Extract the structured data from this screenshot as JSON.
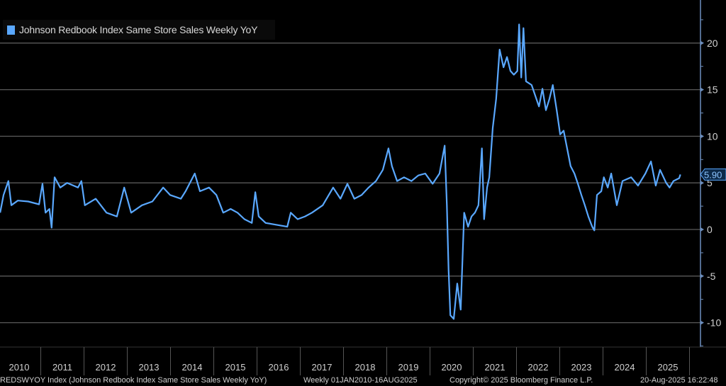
{
  "chart_data": {
    "type": "line",
    "title": "",
    "legend": {
      "label": "Johnson Redbook Index Same Store Sales Weekly YoY",
      "placement": "top-left"
    },
    "series": [
      {
        "name": "Johnson Redbook Index Same Store Sales Weekly YoY",
        "color": "#5aa8ff",
        "points": [
          [
            2010.06,
            1.8
          ],
          [
            2010.14,
            3.7
          ],
          [
            2010.25,
            5.2
          ],
          [
            2010.32,
            2.6
          ],
          [
            2010.47,
            3.1
          ],
          [
            2010.71,
            3.0
          ],
          [
            2010.96,
            2.7
          ],
          [
            2011.04,
            4.9
          ],
          [
            2011.11,
            1.8
          ],
          [
            2011.2,
            2.2
          ],
          [
            2011.25,
            0.2
          ],
          [
            2011.32,
            5.6
          ],
          [
            2011.45,
            4.5
          ],
          [
            2011.61,
            5.0
          ],
          [
            2011.86,
            4.5
          ],
          [
            2011.94,
            5.2
          ],
          [
            2012.02,
            2.6
          ],
          [
            2012.27,
            3.3
          ],
          [
            2012.52,
            1.8
          ],
          [
            2012.76,
            1.4
          ],
          [
            2012.93,
            4.5
          ],
          [
            2013.09,
            1.8
          ],
          [
            2013.34,
            2.6
          ],
          [
            2013.58,
            3.0
          ],
          [
            2013.83,
            4.5
          ],
          [
            2013.99,
            3.7
          ],
          [
            2014.24,
            3.3
          ],
          [
            2014.35,
            4.1
          ],
          [
            2014.56,
            6.0
          ],
          [
            2014.68,
            4.1
          ],
          [
            2014.89,
            4.5
          ],
          [
            2015.06,
            3.7
          ],
          [
            2015.22,
            1.8
          ],
          [
            2015.39,
            2.2
          ],
          [
            2015.55,
            1.8
          ],
          [
            2015.71,
            1.1
          ],
          [
            2015.88,
            0.7
          ],
          [
            2015.96,
            4.0
          ],
          [
            2016.04,
            1.4
          ],
          [
            2016.2,
            0.7
          ],
          [
            2016.45,
            0.5
          ],
          [
            2016.7,
            0.3
          ],
          [
            2016.78,
            1.8
          ],
          [
            2016.94,
            1.1
          ],
          [
            2017.11,
            1.4
          ],
          [
            2017.27,
            1.8
          ],
          [
            2017.52,
            2.6
          ],
          [
            2017.76,
            4.5
          ],
          [
            2017.93,
            3.3
          ],
          [
            2018.09,
            4.9
          ],
          [
            2018.25,
            3.3
          ],
          [
            2018.42,
            3.7
          ],
          [
            2018.58,
            4.5
          ],
          [
            2018.75,
            5.2
          ],
          [
            2018.91,
            6.4
          ],
          [
            2019.04,
            8.7
          ],
          [
            2019.12,
            6.8
          ],
          [
            2019.24,
            5.2
          ],
          [
            2019.4,
            5.6
          ],
          [
            2019.57,
            5.2
          ],
          [
            2019.73,
            5.8
          ],
          [
            2019.89,
            6.0
          ],
          [
            2020.06,
            4.9
          ],
          [
            2020.22,
            6.0
          ],
          [
            2020.34,
            9.0
          ],
          [
            2020.39,
            2.6
          ],
          [
            2020.43,
            -4.3
          ],
          [
            2020.47,
            -9.2
          ],
          [
            2020.55,
            -9.6
          ],
          [
            2020.63,
            -5.8
          ],
          [
            2020.71,
            -8.6
          ],
          [
            2020.79,
            1.8
          ],
          [
            2020.88,
            0.3
          ],
          [
            2020.96,
            1.4
          ],
          [
            2021.04,
            1.8
          ],
          [
            2021.12,
            2.6
          ],
          [
            2021.2,
            8.7
          ],
          [
            2021.25,
            1.1
          ],
          [
            2021.32,
            4.5
          ],
          [
            2021.37,
            5.6
          ],
          [
            2021.45,
            10.9
          ],
          [
            2021.53,
            14.0
          ],
          [
            2021.61,
            19.3
          ],
          [
            2021.7,
            17.4
          ],
          [
            2021.78,
            18.5
          ],
          [
            2021.86,
            17.0
          ],
          [
            2021.94,
            16.6
          ],
          [
            2022.02,
            17.0
          ],
          [
            2022.06,
            22.0
          ],
          [
            2022.11,
            16.3
          ],
          [
            2022.16,
            21.6
          ],
          [
            2022.22,
            15.9
          ],
          [
            2022.35,
            15.5
          ],
          [
            2022.52,
            13.2
          ],
          [
            2022.6,
            15.1
          ],
          [
            2022.68,
            12.8
          ],
          [
            2022.76,
            14.0
          ],
          [
            2022.84,
            15.5
          ],
          [
            2022.93,
            12.8
          ],
          [
            2023.01,
            10.2
          ],
          [
            2023.09,
            10.6
          ],
          [
            2023.17,
            8.7
          ],
          [
            2023.25,
            6.8
          ],
          [
            2023.34,
            6.0
          ],
          [
            2023.42,
            4.9
          ],
          [
            2023.5,
            3.7
          ],
          [
            2023.58,
            2.6
          ],
          [
            2023.66,
            1.4
          ],
          [
            2023.75,
            0.3
          ],
          [
            2023.8,
            -0.1
          ],
          [
            2023.86,
            3.7
          ],
          [
            2023.96,
            4.1
          ],
          [
            2024.02,
            5.6
          ],
          [
            2024.11,
            4.5
          ],
          [
            2024.19,
            6.0
          ],
          [
            2024.32,
            2.6
          ],
          [
            2024.45,
            5.2
          ],
          [
            2024.65,
            5.6
          ],
          [
            2024.81,
            4.7
          ],
          [
            2024.98,
            6.0
          ],
          [
            2025.11,
            7.3
          ],
          [
            2025.22,
            4.7
          ],
          [
            2025.32,
            6.4
          ],
          [
            2025.46,
            5.0
          ],
          [
            2025.54,
            4.5
          ],
          [
            2025.63,
            5.2
          ],
          [
            2025.76,
            5.5
          ],
          [
            2025.79,
            5.9
          ]
        ]
      }
    ],
    "last_value_label": "5.90",
    "last_value": 5.9,
    "xlabel": "",
    "ylabel": "",
    "x_tick_labels": [
      "2010",
      "2011",
      "2012",
      "2013",
      "2014",
      "2015",
      "2016",
      "2017",
      "2018",
      "2019",
      "2020",
      "2021",
      "2022",
      "2023",
      "2024",
      "2025"
    ],
    "y_ticks": [
      -10,
      -5,
      0,
      5,
      10,
      15,
      20
    ],
    "y_tick_labels": [
      "-10",
      "-5",
      "0",
      "5",
      "10",
      "15",
      "20"
    ],
    "xlim": [
      2010.06,
      2026.25
    ],
    "ylim": [
      -12.6,
      24.6
    ],
    "grid": true,
    "colors": {
      "background": "#000000",
      "line": "#5aa8ff",
      "grid": "#5a5a5a",
      "axis": "#6d8fbf"
    }
  },
  "footer": {
    "ticker": "REDSWYOY Index (Johnson Redbook Index Same Store Sales Weekly YoY)",
    "range": "Weekly 01JAN2010-16AUG2025",
    "copyright": "Copyright© 2025 Bloomberg Finance L.P.",
    "timestamp": "20-Aug-2025 16:22:48"
  }
}
